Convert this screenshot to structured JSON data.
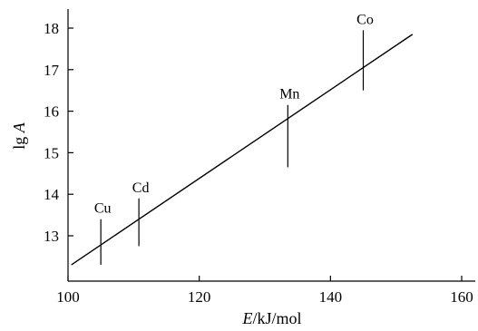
{
  "chart_data": {
    "type": "scatter",
    "xlabel_italic": "E",
    "xlabel_rest": "/kJ/mol",
    "ylabel_prefix": "lg ",
    "ylabel_italic": "A",
    "xlim": [
      100,
      162
    ],
    "ylim": [
      12.1,
      18.5
    ],
    "xticks": [
      100,
      120,
      140,
      160
    ],
    "yticks": [
      13,
      14,
      15,
      16,
      17,
      18
    ],
    "points": [
      {
        "label": "Cu",
        "x": 105,
        "y_low": 12.3,
        "y_high": 13.4
      },
      {
        "label": "Cd",
        "x": 110.8,
        "y_low": 12.75,
        "y_high": 13.9
      },
      {
        "label": "Mn",
        "x": 133.5,
        "y_low": 14.65,
        "y_high": 16.15
      },
      {
        "label": "Co",
        "x": 145,
        "y_low": 16.5,
        "y_high": 17.95
      }
    ],
    "fit_line": {
      "x_start": 100.5,
      "y_start": 12.3,
      "x_end": 152.5,
      "y_end": 17.85
    },
    "grid": false,
    "legend": "none"
  }
}
